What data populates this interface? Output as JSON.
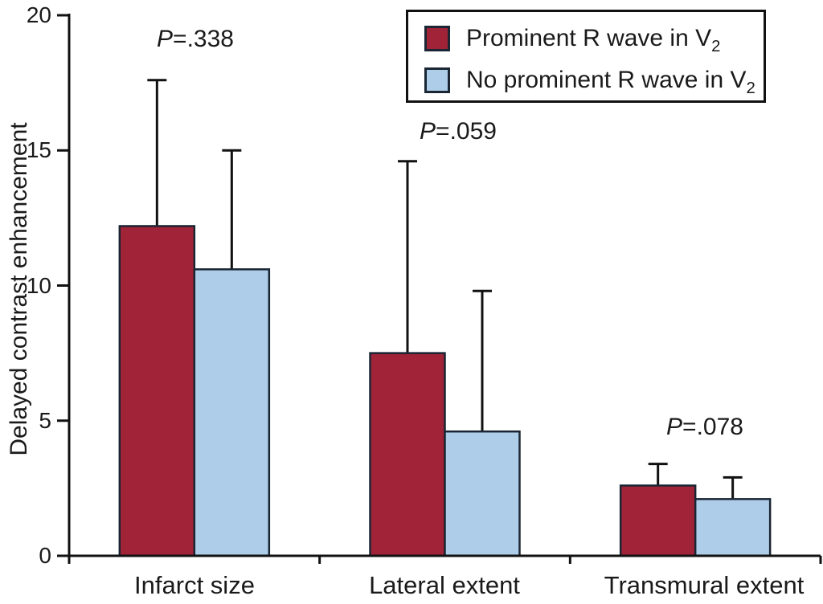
{
  "chart_data": {
    "type": "bar",
    "title": "",
    "ylabel": "Delayed contrast enhancement",
    "xlabel": "",
    "ylim": [
      0,
      20
    ],
    "yticks": [
      0,
      5,
      10,
      15,
      20
    ],
    "grid": false,
    "legend_position": "top-right",
    "categories": [
      "Infarct size",
      "Lateral extent",
      "Transmural extent"
    ],
    "series": [
      {
        "name": "Prominent R wave in V2",
        "color": "#A12338",
        "values": [
          12.2,
          7.5,
          2.6
        ],
        "error_upper": [
          5.4,
          7.1,
          0.8
        ]
      },
      {
        "name": "No prominent R wave in V2",
        "color": "#AECDE8",
        "values": [
          10.6,
          4.6,
          2.1
        ],
        "error_upper": [
          4.4,
          5.2,
          0.8
        ]
      }
    ],
    "p_values": [
      "P=.338",
      "P=.059",
      "P=.078"
    ]
  },
  "axes": {
    "y_tick_labels": {
      "t0": "0",
      "t5": "5",
      "t10": "10",
      "t15": "15",
      "t20": "20"
    }
  },
  "annotations": {
    "p1": {
      "prefix": "P",
      "rest": "=.338"
    },
    "p2": {
      "prefix": "P",
      "rest": "=.059"
    },
    "p3": {
      "prefix": "P",
      "rest": "=.078"
    }
  },
  "legend": {
    "items": [
      {
        "label": "Prominent R wave in V",
        "sub": "2",
        "color": "#A12338"
      },
      {
        "label": "No prominent R wave in V",
        "sub": "2",
        "color": "#AECDE8"
      }
    ]
  },
  "colors": {
    "series_red": "#A12338",
    "series_blue": "#AECDE8",
    "bar_outline": "#1A2633",
    "axis": "#111111",
    "text": "#1A1A1A",
    "background": "#FFFFFF"
  }
}
